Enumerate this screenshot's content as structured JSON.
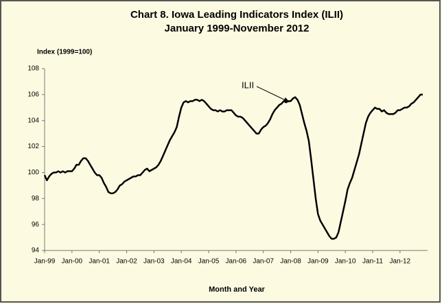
{
  "chart_data": {
    "type": "line",
    "title": "Chart 8. Iowa Leading Indicators Index (ILII)",
    "subtitle": "January 1999-November 2012",
    "y_label": "Index (1999=100)",
    "x_label": "Month and Year",
    "annotation": "ILII",
    "categories": [
      "Jan-99",
      null,
      null,
      null,
      null,
      null,
      null,
      null,
      null,
      null,
      null,
      null,
      "Jan-00",
      null,
      null,
      null,
      null,
      null,
      null,
      null,
      null,
      null,
      null,
      null,
      "Jan-01",
      null,
      null,
      null,
      null,
      null,
      null,
      null,
      null,
      null,
      null,
      null,
      "Jan-02",
      null,
      null,
      null,
      null,
      null,
      null,
      null,
      null,
      null,
      null,
      null,
      "Jan-03",
      null,
      null,
      null,
      null,
      null,
      null,
      null,
      null,
      null,
      null,
      null,
      "Jan-04",
      null,
      null,
      null,
      null,
      null,
      null,
      null,
      null,
      null,
      null,
      null,
      "Jan-05",
      null,
      null,
      null,
      null,
      null,
      null,
      null,
      null,
      null,
      null,
      null,
      "Jan-06",
      null,
      null,
      null,
      null,
      null,
      null,
      null,
      null,
      null,
      null,
      null,
      "Jan-07",
      null,
      null,
      null,
      null,
      null,
      null,
      null,
      null,
      null,
      null,
      null,
      "Jan-08",
      null,
      null,
      null,
      null,
      null,
      null,
      null,
      null,
      null,
      null,
      null,
      "Jan-09",
      null,
      null,
      null,
      null,
      null,
      null,
      null,
      null,
      null,
      null,
      null,
      "Jan-10",
      null,
      null,
      null,
      null,
      null,
      null,
      null,
      null,
      null,
      null,
      null,
      "Jan-11",
      null,
      null,
      null,
      null,
      null,
      null,
      null,
      null,
      null,
      null,
      null,
      "Jan-12",
      null,
      null,
      null,
      null,
      null,
      null,
      null,
      null,
      null,
      null
    ],
    "series": [
      {
        "name": "ILII",
        "color": "#000000",
        "values": [
          99.8,
          99.4,
          99.7,
          99.9,
          100.0,
          100.0,
          100.1,
          100.0,
          100.1,
          100.0,
          100.1,
          100.1,
          100.1,
          100.3,
          100.6,
          100.6,
          100.9,
          101.1,
          101.1,
          100.9,
          100.6,
          100.3,
          100.0,
          99.8,
          99.8,
          99.6,
          99.2,
          98.9,
          98.5,
          98.4,
          98.4,
          98.5,
          98.7,
          99.0,
          99.1,
          99.3,
          99.4,
          99.5,
          99.6,
          99.7,
          99.7,
          99.8,
          99.8,
          100.0,
          100.2,
          100.3,
          100.1,
          100.2,
          100.3,
          100.4,
          100.6,
          100.9,
          101.3,
          101.7,
          102.1,
          102.5,
          102.8,
          103.1,
          103.5,
          104.3,
          105.0,
          105.4,
          105.5,
          105.4,
          105.5,
          105.5,
          105.6,
          105.6,
          105.5,
          105.6,
          105.5,
          105.3,
          105.1,
          104.9,
          104.8,
          104.8,
          104.7,
          104.8,
          104.7,
          104.7,
          104.8,
          104.8,
          104.8,
          104.6,
          104.4,
          104.3,
          104.3,
          104.2,
          104.0,
          103.8,
          103.6,
          103.4,
          103.2,
          103.0,
          103.0,
          103.3,
          103.5,
          103.6,
          103.8,
          104.1,
          104.5,
          104.8,
          105.0,
          105.2,
          105.3,
          105.5,
          105.4,
          105.5,
          105.5,
          105.7,
          105.8,
          105.6,
          105.2,
          104.5,
          103.8,
          103.2,
          102.4,
          101.0,
          99.5,
          98.0,
          96.8,
          96.3,
          96.0,
          95.7,
          95.4,
          95.1,
          94.9,
          94.9,
          95.0,
          95.4,
          96.2,
          97.0,
          97.8,
          98.7,
          99.2,
          99.6,
          100.2,
          100.8,
          101.4,
          102.2,
          103.0,
          103.8,
          104.3,
          104.6,
          104.8,
          105.0,
          104.9,
          104.9,
          104.7,
          104.8,
          104.6,
          104.5,
          104.5,
          104.5,
          104.6,
          104.8,
          104.8,
          104.9,
          105.0,
          105.0,
          105.1,
          105.3,
          105.4,
          105.6,
          105.8,
          106.0,
          106.0
        ]
      }
    ],
    "ylim": [
      94,
      108
    ],
    "yticks": [
      94,
      96,
      98,
      100,
      102,
      104,
      106,
      108
    ],
    "grid": false
  }
}
